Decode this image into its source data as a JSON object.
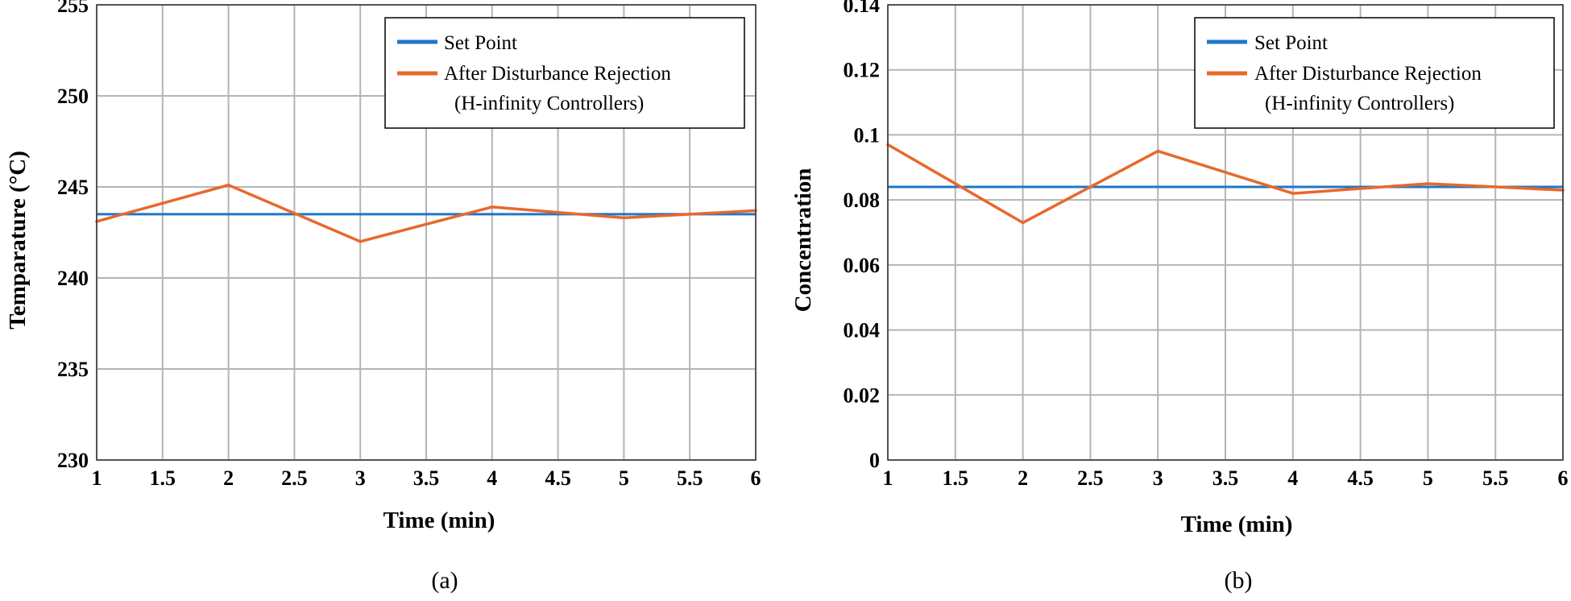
{
  "chart_data": [
    {
      "type": "line",
      "caption": "(a)",
      "xlabel": "Time (min)",
      "ylabel": "Temparature (°C)",
      "xlim": [
        1,
        6
      ],
      "ylim": [
        230,
        255
      ],
      "xticks": [
        "1",
        "1.5",
        "2",
        "2.5",
        "3",
        "3.5",
        "4",
        "4.5",
        "5",
        "5.5",
        "6"
      ],
      "yticks": [
        "230",
        "235",
        "240",
        "245",
        "250",
        "255"
      ],
      "grid": true,
      "legend_position": "top-right",
      "legend": [
        "Set Point",
        "After Disturbance Rejection",
        "(H-infinity Controllers)"
      ],
      "series": [
        {
          "name": "Set Point",
          "color": "#1f77c8",
          "x": [
            1,
            6
          ],
          "y": [
            243.5,
            243.5
          ]
        },
        {
          "name": "After Disturbance Rejection (H-infinity Controllers)",
          "color": "#e8682c",
          "x": [
            1,
            2,
            3,
            4,
            5,
            6
          ],
          "y": [
            243.1,
            245.1,
            242.0,
            243.9,
            243.3,
            243.7
          ]
        }
      ]
    },
    {
      "type": "line",
      "caption": "(b)",
      "xlabel": "Time (min)",
      "ylabel": "Concentration",
      "xlim": [
        1,
        6
      ],
      "ylim": [
        0,
        0.14
      ],
      "xticks": [
        "1",
        "1.5",
        "2",
        "2.5",
        "3",
        "3.5",
        "4",
        "4.5",
        "5",
        "5.5",
        "6"
      ],
      "yticks": [
        "0",
        "0.02",
        "0.04",
        "0.06",
        "0.08",
        "0.1",
        "0.12",
        "0.14"
      ],
      "grid": true,
      "legend_position": "top-right",
      "legend": [
        "Set Point",
        "After Disturbance Rejection",
        "(H-infinity Controllers)"
      ],
      "series": [
        {
          "name": "Set Point",
          "color": "#1f77c8",
          "x": [
            1,
            6
          ],
          "y": [
            0.084,
            0.084
          ]
        },
        {
          "name": "After Disturbance Rejection (H-infinity Controllers)",
          "color": "#e8682c",
          "x": [
            1,
            2,
            3,
            4,
            5,
            6
          ],
          "y": [
            0.097,
            0.073,
            0.095,
            0.082,
            0.085,
            0.083
          ]
        }
      ]
    }
  ]
}
